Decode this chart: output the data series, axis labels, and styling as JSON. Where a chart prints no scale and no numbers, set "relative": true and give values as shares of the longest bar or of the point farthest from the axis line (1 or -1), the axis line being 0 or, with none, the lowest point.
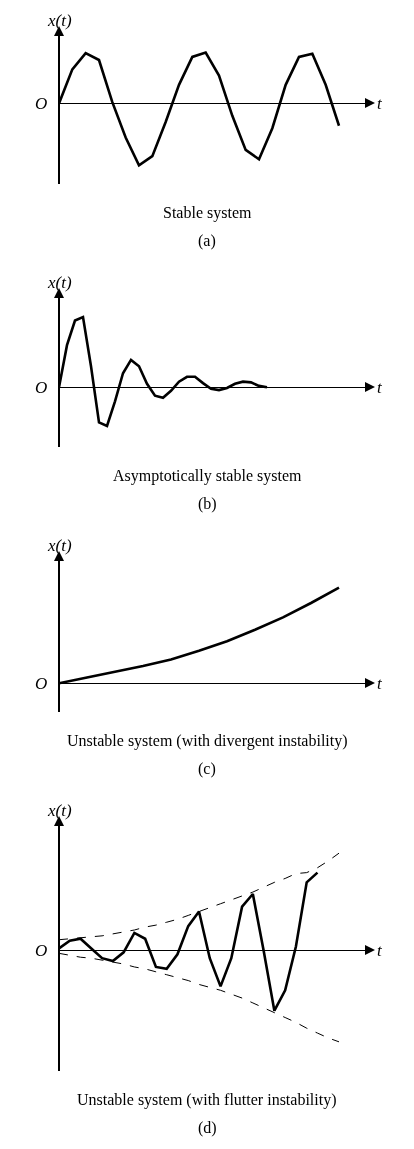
{
  "chart_data": [
    {
      "type": "line",
      "relative": true,
      "title": "Stable system",
      "subtitle": "(a)",
      "xlabel": "t",
      "ylabel": "x(t)",
      "annotations": [
        "O"
      ],
      "marker": "none",
      "line_style": "solid",
      "legend": false,
      "categories": [
        null,
        null,
        null,
        null,
        null,
        null,
        null,
        null,
        null,
        null,
        null,
        null,
        null,
        null,
        null,
        null,
        null,
        null,
        null,
        null,
        null,
        null
      ],
      "series": [
        {
          "color": "#000000",
          "values": [
            0,
            0.55,
            0.81,
            0.7,
            0.02,
            -0.55,
            -1,
            -0.85,
            -0.3,
            0.3,
            0.75,
            0.82,
            0.45,
            -0.2,
            -0.75,
            -0.9,
            -0.4,
            0.3,
            0.75,
            0.8,
            0.3,
            -0.36
          ]
        }
      ]
    },
    {
      "type": "line",
      "relative": true,
      "title": "Asymptotically stable system",
      "subtitle": "(b)",
      "xlabel": "t",
      "ylabel": "x(t)",
      "annotations": [
        "O"
      ],
      "marker": "none",
      "line_style": "solid",
      "legend": false,
      "categories": [
        null,
        null,
        null,
        null,
        null,
        null,
        null,
        null,
        null,
        null,
        null,
        null,
        null,
        null,
        null,
        null,
        null,
        null,
        null,
        null,
        null,
        null,
        null,
        null,
        null,
        null,
        null,
        null,
        null,
        null,
        null,
        null,
        null,
        null,
        null,
        null
      ],
      "series": [
        {
          "color": "#000000",
          "values": [
            0,
            0.6,
            0.95,
            1,
            0.3,
            -0.5,
            -0.55,
            -0.2,
            0.2,
            0.39,
            0.3,
            0.05,
            -0.12,
            -0.15,
            -0.05,
            0.08,
            0.15,
            0.15,
            0.06,
            -0.02,
            -0.04,
            -0.01,
            0.05,
            0.08,
            0.07,
            0.02,
            0,
            null,
            null,
            null,
            null,
            null,
            null,
            null,
            null,
            null
          ]
        }
      ]
    },
    {
      "type": "line",
      "relative": true,
      "title": "Unstable system (with divergent instability)",
      "subtitle": "(c)",
      "xlabel": "t",
      "ylabel": "x(t)",
      "annotations": [
        "O"
      ],
      "marker": "none",
      "line_style": "solid",
      "legend": false,
      "categories": [
        null,
        null,
        null,
        null,
        null,
        null,
        null,
        null,
        null,
        null,
        null
      ],
      "series": [
        {
          "color": "#000000",
          "values": [
            0,
            0.06,
            0.12,
            0.18,
            0.25,
            0.34,
            0.44,
            0.56,
            0.69,
            0.84,
            1
          ]
        }
      ]
    },
    {
      "type": "line",
      "relative": true,
      "title": "Unstable system (with flutter instability)",
      "subtitle": "(d)",
      "xlabel": "t",
      "ylabel": "x(t)",
      "annotations": [
        "O"
      ],
      "marker": "none",
      "line_style": "solid",
      "legend": false,
      "categories": [
        null,
        null,
        null,
        null,
        null,
        null,
        null,
        null,
        null,
        null,
        null,
        null,
        null,
        null,
        null,
        null,
        null,
        null,
        null,
        null,
        null,
        null,
        null,
        null,
        null,
        null,
        null
      ],
      "series": [
        {
          "color": "#000000",
          "values": [
            0.02,
            0.1,
            0.12,
            0.02,
            -0.08,
            -0.11,
            -0.02,
            0.18,
            0.12,
            -0.17,
            -0.19,
            -0.04,
            0.25,
            0.4,
            -0.08,
            -0.37,
            -0.08,
            0.45,
            0.58,
            0,
            -0.62,
            -0.41,
            0.04,
            0.7,
            0.8,
            null,
            null
          ]
        },
        {
          "color": "#000000",
          "line_style": "dashed",
          "values": [
            0.11,
            0.12,
            0.13,
            0.14,
            0.15,
            0.17,
            0.19,
            0.21,
            0.24,
            0.26,
            0.29,
            0.32,
            0.36,
            0.4,
            0.44,
            0.48,
            0.52,
            0.56,
            0.6,
            0.65,
            0.7,
            0.74,
            0.79,
            0.8,
            0.85,
            0.92,
            1
          ]
        },
        {
          "color": "#000000",
          "line_style": "dashed",
          "values": [
            -0.03,
            -0.05,
            -0.07,
            -0.08,
            -0.1,
            -0.12,
            -0.14,
            -0.17,
            -0.19,
            -0.22,
            -0.25,
            -0.28,
            -0.31,
            -0.35,
            -0.38,
            -0.41,
            -0.45,
            -0.49,
            -0.54,
            -0.59,
            -0.64,
            -0.69,
            -0.74,
            -0.8,
            -0.85,
            -0.9,
            -0.94
          ]
        }
      ]
    }
  ]
}
